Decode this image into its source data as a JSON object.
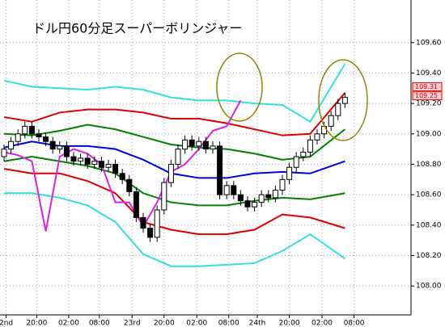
{
  "chart_data": {
    "type": "candlestick",
    "title": "ドル円60分足スーパーボリンジャー",
    "x": [
      0,
      1,
      2,
      3,
      4,
      5,
      6,
      7,
      8,
      9,
      10,
      11,
      12,
      13,
      14,
      15,
      16,
      17,
      18,
      19,
      20,
      21,
      22,
      23,
      24,
      25,
      26,
      27,
      28,
      29,
      30,
      31,
      32,
      33,
      34,
      35,
      36,
      37,
      38,
      39,
      40,
      41,
      42,
      43,
      44,
      45,
      46,
      47,
      48,
      49
    ],
    "open": [
      108.85,
      108.9,
      108.95,
      109.0,
      109.05,
      109.0,
      108.98,
      108.95,
      108.9,
      108.92,
      108.85,
      108.82,
      108.84,
      108.8,
      108.82,
      108.78,
      108.8,
      108.74,
      108.7,
      108.62,
      108.45,
      108.38,
      108.32,
      108.5,
      108.68,
      108.8,
      108.9,
      108.96,
      108.92,
      108.95,
      108.9,
      108.92,
      108.6,
      108.66,
      108.6,
      108.56,
      108.52,
      108.55,
      108.6,
      108.58,
      108.63,
      108.7,
      108.78,
      108.85,
      108.88,
      108.96,
      109.0,
      109.05,
      109.12,
      109.2
    ],
    "high": [
      108.93,
      108.98,
      109.03,
      109.08,
      109.08,
      109.03,
      109.01,
      108.98,
      108.95,
      108.95,
      108.88,
      108.87,
      108.87,
      108.85,
      108.85,
      108.83,
      108.83,
      108.77,
      108.73,
      108.65,
      108.48,
      108.41,
      108.53,
      108.71,
      108.83,
      108.93,
      108.99,
      108.99,
      108.98,
      108.98,
      108.95,
      108.95,
      108.69,
      108.69,
      108.63,
      108.59,
      108.58,
      108.63,
      108.63,
      108.66,
      108.73,
      108.81,
      108.88,
      108.91,
      108.99,
      109.03,
      109.08,
      109.15,
      109.23,
      109.27
    ],
    "low": [
      108.82,
      108.87,
      108.92,
      108.97,
      108.97,
      108.95,
      108.92,
      108.87,
      108.87,
      108.82,
      108.79,
      108.79,
      108.77,
      108.77,
      108.75,
      108.75,
      108.71,
      108.67,
      108.59,
      108.42,
      108.35,
      108.29,
      108.29,
      108.47,
      108.65,
      108.77,
      108.87,
      108.89,
      108.89,
      108.87,
      108.87,
      108.57,
      108.57,
      108.57,
      108.53,
      108.49,
      108.49,
      108.52,
      108.55,
      108.55,
      108.6,
      108.67,
      108.75,
      108.82,
      108.85,
      108.93,
      108.97,
      109.02,
      109.09,
      109.17
    ],
    "close": [
      108.9,
      108.95,
      109.0,
      109.05,
      109.0,
      108.98,
      108.95,
      108.9,
      108.92,
      108.85,
      108.82,
      108.84,
      108.8,
      108.82,
      108.78,
      108.8,
      108.74,
      108.7,
      108.62,
      108.45,
      108.38,
      108.32,
      108.5,
      108.68,
      108.8,
      108.9,
      108.96,
      108.92,
      108.95,
      108.9,
      108.92,
      108.6,
      108.66,
      108.6,
      108.56,
      108.52,
      108.55,
      108.6,
      108.58,
      108.63,
      108.7,
      108.78,
      108.85,
      108.88,
      108.96,
      109.0,
      109.05,
      109.12,
      109.2,
      109.24
    ],
    "up_color": "#ffffff",
    "down_color": "#000000",
    "series": [
      {
        "color": "#33e0e0",
        "x": [
          0,
          4,
          8,
          12,
          16,
          20,
          24,
          28,
          32,
          36,
          40,
          44,
          49
        ],
        "values": [
          109.35,
          109.31,
          109.3,
          109.29,
          109.31,
          109.29,
          109.24,
          109.22,
          109.22,
          109.2,
          109.19,
          109.08,
          109.46
        ]
      },
      {
        "color": "#e00000",
        "x": [
          0,
          4,
          8,
          12,
          16,
          20,
          24,
          28,
          32,
          36,
          40,
          44,
          49
        ],
        "values": [
          109.11,
          109.08,
          109.14,
          109.16,
          109.16,
          109.14,
          109.1,
          109.1,
          109.07,
          109.03,
          108.99,
          109.0,
          109.27
        ]
      },
      {
        "color": "#008000",
        "x": [
          0,
          4,
          8,
          12,
          16,
          20,
          24,
          28,
          32,
          36,
          40,
          44,
          49
        ],
        "values": [
          109.0,
          108.99,
          109.02,
          109.06,
          109.03,
          108.98,
          108.93,
          108.91,
          108.9,
          108.87,
          108.83,
          108.85,
          109.03
        ]
      },
      {
        "color": "#0000e0",
        "x": [
          0,
          4,
          8,
          12,
          16,
          20,
          24,
          28,
          32,
          36,
          40,
          44,
          49
        ],
        "values": [
          108.91,
          108.95,
          108.92,
          108.92,
          108.9,
          108.83,
          108.74,
          108.71,
          108.71,
          108.74,
          108.75,
          108.74,
          108.82
        ]
      },
      {
        "color": "#008000",
        "x": [
          0,
          4,
          8,
          12,
          16,
          20,
          24,
          28,
          32,
          36,
          40,
          44,
          49
        ],
        "values": [
          108.82,
          108.85,
          108.82,
          108.79,
          108.74,
          108.61,
          108.55,
          108.53,
          108.53,
          108.56,
          108.58,
          108.57,
          108.61
        ]
      },
      {
        "color": "#e00000",
        "x": [
          0,
          4,
          8,
          12,
          16,
          20,
          24,
          28,
          32,
          36,
          40,
          44,
          49
        ],
        "values": [
          108.77,
          108.74,
          108.74,
          108.69,
          108.61,
          108.42,
          108.37,
          108.34,
          108.34,
          108.37,
          108.47,
          108.45,
          108.38
        ]
      },
      {
        "color": "#33e0e0",
        "x": [
          0,
          4,
          8,
          12,
          16,
          20,
          24,
          28,
          32,
          36,
          40,
          44,
          49
        ],
        "values": [
          108.61,
          108.61,
          108.58,
          108.53,
          108.42,
          108.21,
          108.13,
          108.13,
          108.14,
          108.15,
          108.23,
          108.34,
          108.18
        ]
      },
      {
        "color": "#e020e0",
        "x": [
          0,
          2,
          4,
          6,
          8,
          10,
          12,
          14,
          16,
          18,
          20,
          22,
          24,
          26,
          28,
          30,
          32,
          34
        ],
        "values": [
          108.88,
          108.86,
          108.82,
          108.36,
          108.85,
          108.9,
          108.87,
          108.8,
          108.55,
          108.55,
          108.39,
          108.55,
          108.75,
          108.8,
          108.9,
          109.02,
          109.05,
          109.22
        ]
      }
    ],
    "xlim": [
      -0.58,
      58.49
    ],
    "xticks": [
      {
        "value": 0.3,
        "label": "2nd"
      },
      {
        "value": 4.7,
        "label": "20:00"
      },
      {
        "value": 9.3,
        "label": "02:00"
      },
      {
        "value": 13.7,
        "label": "08:00"
      },
      {
        "value": 18.4,
        "label": "23rd"
      },
      {
        "value": 23,
        "label": "20:00"
      },
      {
        "value": 27.7,
        "label": "02:00"
      },
      {
        "value": 32.3,
        "label": "08:00"
      },
      {
        "value": 36.4,
        "label": "24th"
      },
      {
        "value": 41,
        "label": "20:00"
      },
      {
        "value": 45.7,
        "label": "02:00"
      },
      {
        "value": 50.3,
        "label": "08:00"
      }
    ],
    "ylim": [
      107.81,
      109.88
    ],
    "yticks": [
      {
        "value": 108,
        "label": "108.00"
      },
      {
        "value": 108.2,
        "label": "108.20"
      },
      {
        "value": 108.4,
        "label": "108.40"
      },
      {
        "value": 108.6,
        "label": "108.60"
      },
      {
        "value": 108.8,
        "label": "108.80"
      },
      {
        "value": 109,
        "label": "109.00"
      },
      {
        "value": 109.2,
        "label": "109.20"
      },
      {
        "value": 109.4,
        "label": "109.40"
      },
      {
        "value": 109.6,
        "label": "109.60"
      }
    ],
    "price_markers": [
      109.31,
      109.25
    ],
    "grid": true
  }
}
